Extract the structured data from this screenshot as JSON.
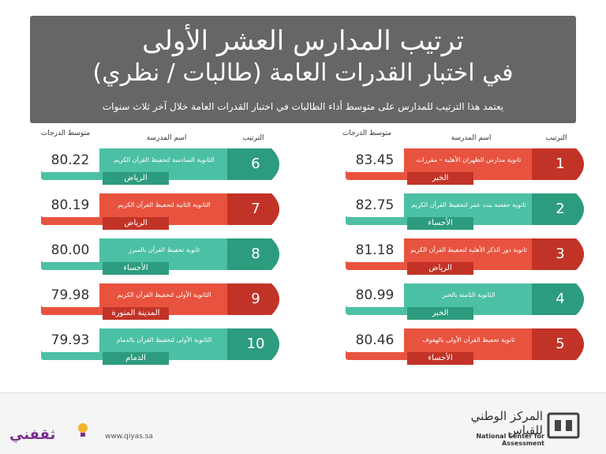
{
  "header": {
    "title_line1": "ترتيب المدارس العشر الأولى",
    "title_line2": "في اختبار القدرات العامة (طالبات / نظري)",
    "subtitle": "يعتمد هذا الترتيب للمدارس على متوسط أداء الطالبات في اختبار القدرات العامة خلال آخر ثلاث سنوات"
  },
  "columns": {
    "avg": "متوسط الدرجات",
    "school": "اسم المدرسة",
    "rank": "الترتيب"
  },
  "colors": {
    "green": "#4cc0a4",
    "green_dark": "#2d9c7e",
    "red": "#e8533f",
    "red_dark": "#c23327",
    "header_bg": "#666666"
  },
  "right_column": [
    {
      "rank": "1",
      "name": "ثانوية مدارس الظهران الأهلية – مقررات",
      "city": "الخبر",
      "avg": "83.45",
      "color": "red"
    },
    {
      "rank": "2",
      "name": "ثانوية حفصة بنت عمر لتحفيظ القرآن الكريم",
      "city": "الأحساء",
      "avg": "82.75",
      "color": "green"
    },
    {
      "rank": "3",
      "name": "ثانوية دور الذكر الأهلية لتحفيظ القرآن الكريم",
      "city": "الرياض",
      "avg": "81.18",
      "color": "red"
    },
    {
      "rank": "4",
      "name": "الثانوية الثامنة بالخبر",
      "city": "الخبر",
      "avg": "80.99",
      "color": "green"
    },
    {
      "rank": "5",
      "name": "ثانوية تحفيظ القرآن الأولى بالهفوف",
      "city": "الأحساء",
      "avg": "80.46",
      "color": "red"
    }
  ],
  "left_column": [
    {
      "rank": "6",
      "name": "الثانوية السادسة لتحفيظ القرآن الكريم",
      "city": "الرياض",
      "avg": "80.22",
      "color": "green"
    },
    {
      "rank": "7",
      "name": "الثانوية الثانية لتحفيظ القرآن الكريم",
      "city": "الرياض",
      "avg": "80.19",
      "color": "red"
    },
    {
      "rank": "8",
      "name": "ثانوية تحفيظ القرآن بالمبرز",
      "city": "الأحساء",
      "avg": "80.00",
      "color": "green"
    },
    {
      "rank": "9",
      "name": "الثانوية الأولى لتحفيظ القرآن الكريم",
      "city": "المدينة المنورة",
      "avg": "79.98",
      "color": "red"
    },
    {
      "rank": "10",
      "name": "الثانوية الأولى لتحفيظ القرآن بالدمام",
      "city": "الدمام",
      "avg": "79.93",
      "color": "green"
    }
  ],
  "footer": {
    "website": "www.qiyas.sa",
    "org_ar": "المركز الوطني للقياس",
    "org_en": "National Center for Assessment",
    "brand": "ثقفني"
  }
}
